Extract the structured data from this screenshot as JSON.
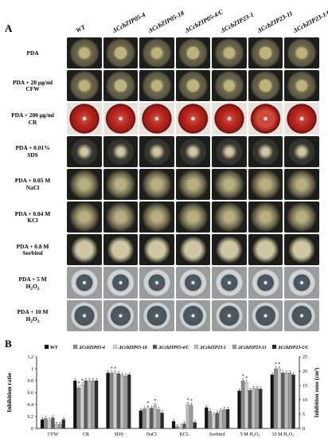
{
  "panel_a": {
    "letter": "A",
    "columns": [
      "WT",
      "ΔCcbZIP05-4",
      "ΔCcbZIP05-18",
      "ΔCcbZIP05-4/C",
      "ΔCcbZIP23-1",
      "ΔCcbZIP23-11",
      "ΔCcbZIP23-1/C"
    ],
    "rows": [
      {
        "line1": "PDA",
        "line2": "",
        "plate": "pda"
      },
      {
        "line1": "PDA + 20 μg/ml",
        "line2": "CFW",
        "plate": "pda"
      },
      {
        "line1": "PDA + 200 μg/ml",
        "line2": "CR",
        "plate": "cr"
      },
      {
        "line1": "PDA + 0.01%",
        "line2": "SDS",
        "plate": "dark"
      },
      {
        "line1": "PDA + 0.05 M",
        "line2": "NaCl",
        "plate": "salt"
      },
      {
        "line1": "PDA + 0.04 M",
        "line2": "KCl",
        "plate": "salt"
      },
      {
        "line1": "PDA + 0.8 M",
        "line2": "Sorbitol",
        "plate": "dark"
      },
      {
        "line1": "PDA + 5 M",
        "line2": "H",
        "sub": "2",
        "tail": "O",
        "sub2": "2",
        "plate": "h2o2"
      },
      {
        "line1": "PDA + 10 M",
        "line2": "H",
        "sub": "2",
        "tail": "O",
        "sub2": "2",
        "plate": "h2o2"
      }
    ],
    "colors": {
      "pda": "#5f5a45",
      "cr": "#b8241c",
      "dark": "#3e3e3a",
      "salt": "#5a5642",
      "h2o2": "#b9bcbd",
      "h2o2_inner": "#4d5a66"
    }
  },
  "panel_b": {
    "letter": "B",
    "legend": [
      "WT",
      "ΔCcbZIP05-4",
      "ΔCcbZIP05-18",
      "ΔCcbZIP05-4/C",
      "ΔCcbZIP23-1",
      "ΔCcbZIP23-11",
      "ΔCcbZIP23-1/C"
    ]
  },
  "chart_data": {
    "type": "bar",
    "categories": [
      "CFW",
      "CR",
      "SDS",
      "NaCl",
      "KCL",
      "Sorbitol",
      "5 M H₂O₂",
      "10 M H₂O₂"
    ],
    "ylabel": "Inhibition ratio",
    "ylabel_right": "Inhibition zone (cm²)",
    "ylim": [
      0,
      1.2
    ],
    "yticks": [
      "0",
      "0.2",
      "0.4",
      "0.6",
      "0.8",
      "1",
      "1.2"
    ],
    "ylim_right": [
      0,
      25
    ],
    "yticks_right": [
      "0",
      "5",
      "10",
      "15",
      "20",
      "25"
    ],
    "series_colors": [
      "#111111",
      "#8a8a8a",
      "#d0d0d0",
      "#5a5a5a",
      "#bcbcbc",
      "#9a9a9a",
      "#2a2a2a"
    ],
    "series": [
      {
        "name": "WT",
        "values": [
          0.15,
          0.8,
          0.93,
          0.3,
          0.12,
          0.35,
          0.63,
          0.9
        ]
      },
      {
        "name": "ΔCcbZIP05-4",
        "values": [
          0.17,
          0.68,
          0.93,
          0.33,
          0.03,
          0.29,
          0.8,
          1.0
        ]
      },
      {
        "name": "ΔCcbZIP05-18",
        "values": [
          0.14,
          0.73,
          0.93,
          0.35,
          0.04,
          0.23,
          0.77,
          1.0
        ]
      },
      {
        "name": "ΔCcbZIP05-4/C",
        "values": [
          0.18,
          0.8,
          0.92,
          0.34,
          0.08,
          0.26,
          0.64,
          0.93
        ]
      },
      {
        "name": "ΔCcbZIP23-1",
        "values": [
          0.07,
          0.8,
          0.9,
          0.39,
          0.4,
          0.3,
          0.67,
          0.93
        ]
      },
      {
        "name": "ΔCcbZIP23-11",
        "values": [
          0.07,
          0.8,
          0.88,
          0.32,
          0.39,
          0.32,
          0.67,
          0.93
        ]
      },
      {
        "name": "ΔCcbZIP23-1/C",
        "values": [
          0.15,
          0.8,
          0.9,
          0.26,
          0.1,
          0.32,
          0.66,
          0.9
        ]
      }
    ],
    "starred": [
      [
        1,
        1
      ],
      [
        1,
        2
      ],
      [
        2,
        1
      ],
      [
        2,
        2
      ],
      [
        3,
        2
      ],
      [
        3,
        4
      ],
      [
        4,
        4
      ],
      [
        4,
        5
      ],
      [
        6,
        1
      ],
      [
        6,
        2
      ],
      [
        7,
        1
      ],
      [
        7,
        2
      ]
    ],
    "star": "*"
  }
}
